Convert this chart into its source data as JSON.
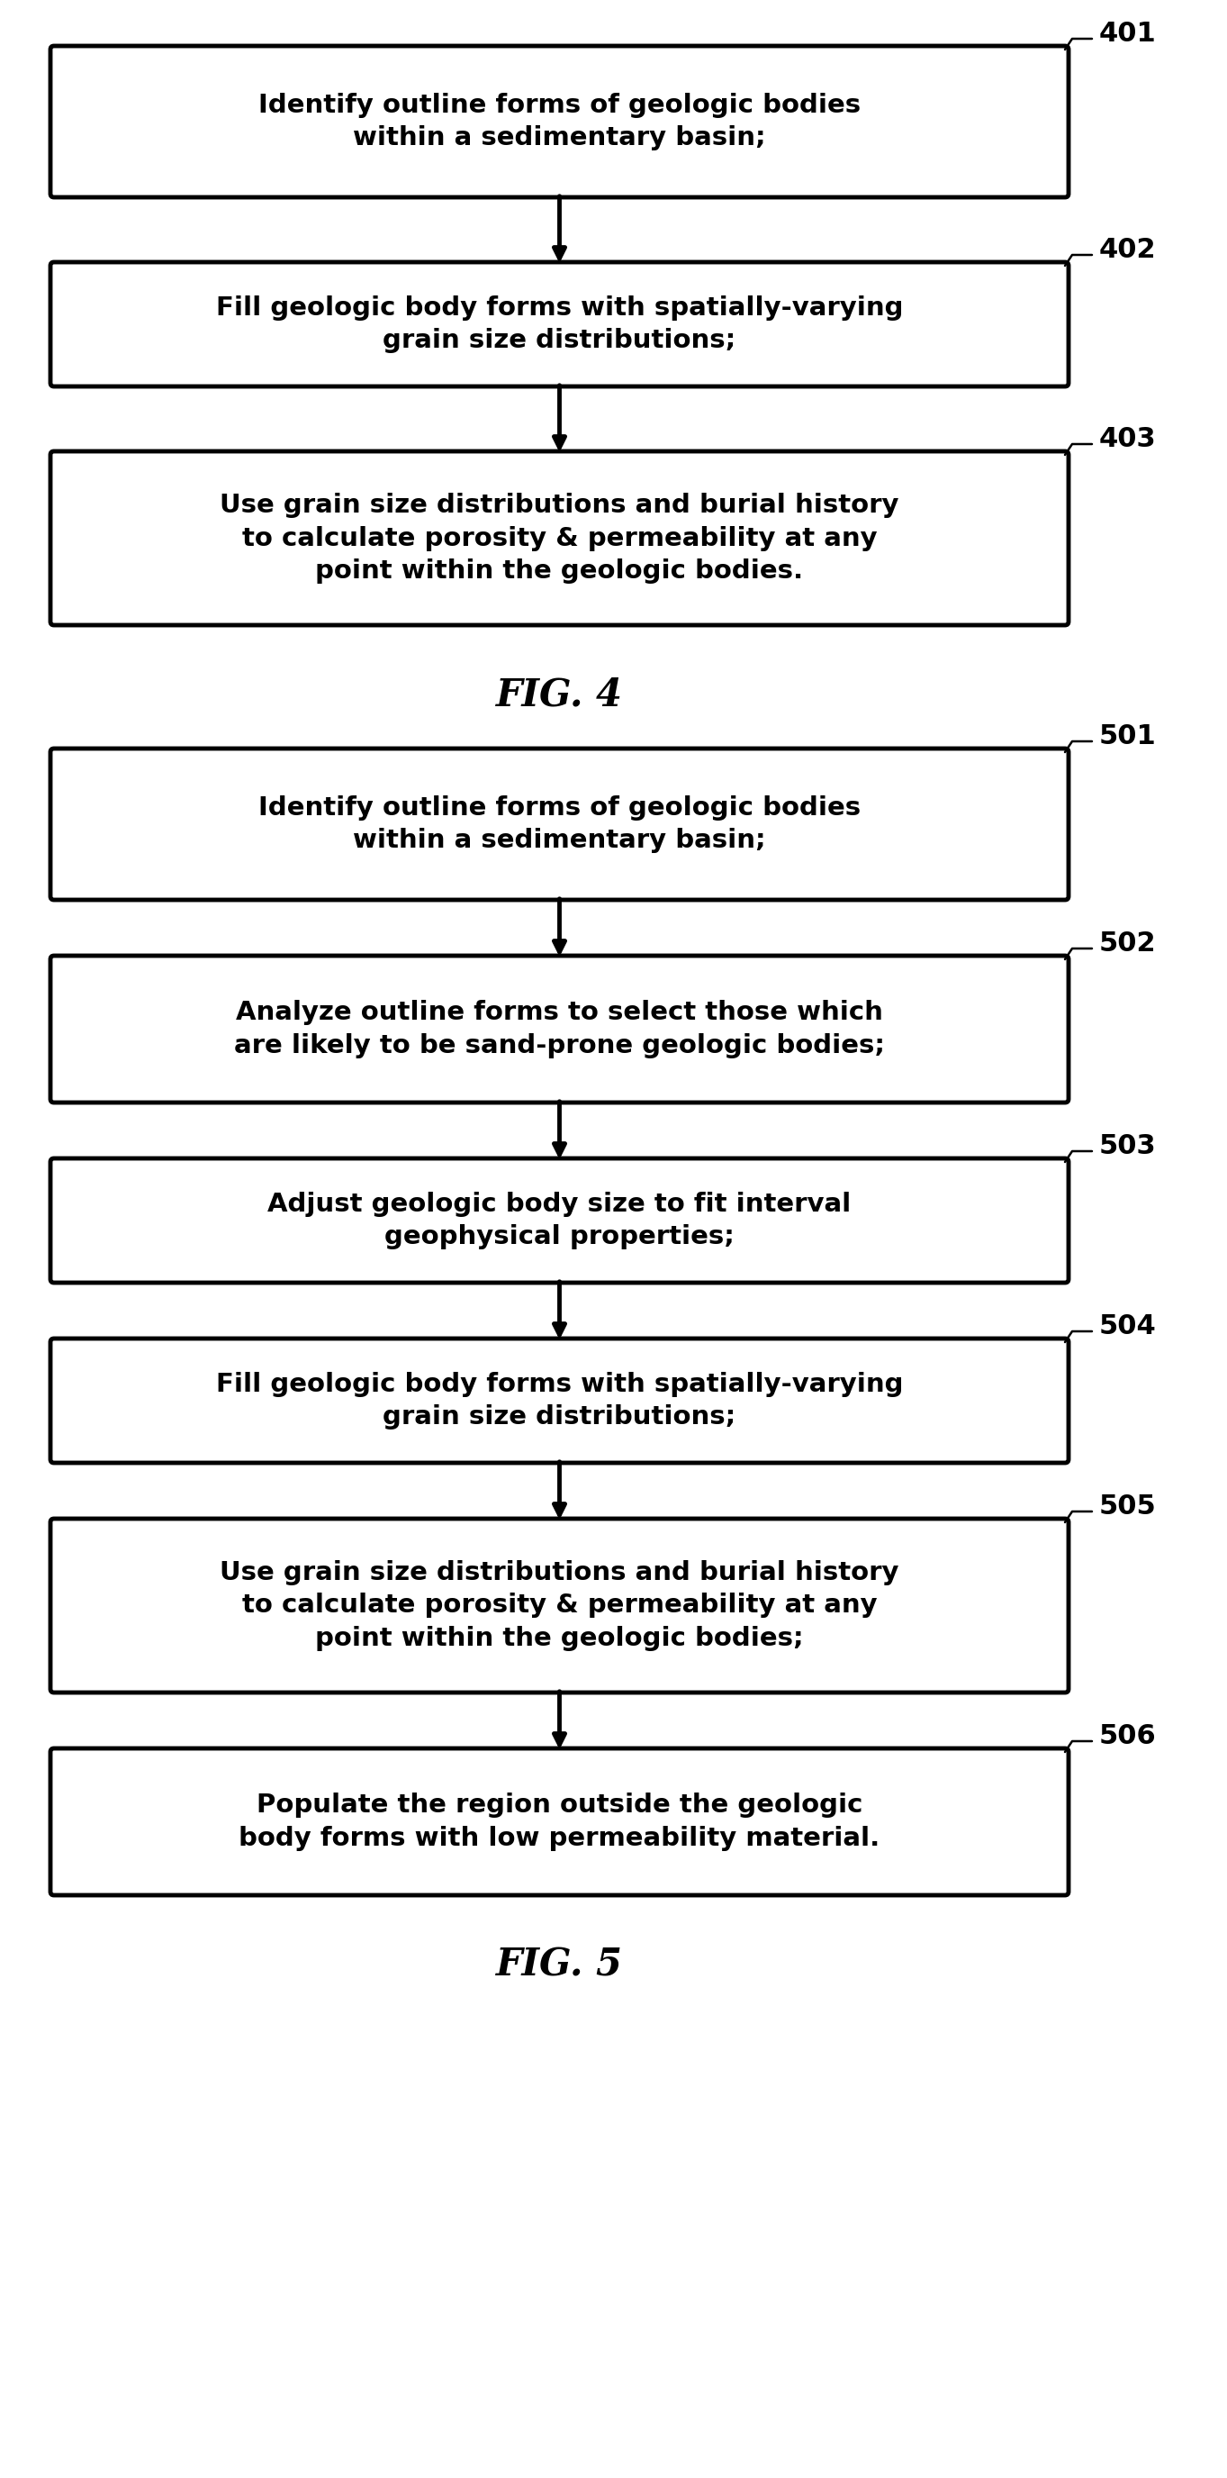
{
  "fig4": {
    "title": "FIG. 4",
    "boxes": [
      {
        "label": "Identify outline forms of geologic bodies\nwithin a sedimentary basin;",
        "ref": "401"
      },
      {
        "label": "Fill geologic body forms with spatially-varying\ngrain size distributions;",
        "ref": "402"
      },
      {
        "label": "Use grain size distributions and burial history\nto calculate porosity & permeability at any\npoint within the geologic bodies.",
        "ref": "403"
      }
    ]
  },
  "fig5": {
    "title": "FIG. 5",
    "boxes": [
      {
        "label": "Identify outline forms of geologic bodies\nwithin a sedimentary basin;",
        "ref": "501"
      },
      {
        "label": "Analyze outline forms to select those which\nare likely to be sand-prone geologic bodies;",
        "ref": "502"
      },
      {
        "label": "Adjust geologic body size to fit interval\ngeophysical properties;",
        "ref": "503"
      },
      {
        "label": "Fill geologic body forms with spatially-varying\ngrain size distributions;",
        "ref": "504"
      },
      {
        "label": "Use grain size distributions and burial history\nto calculate porosity & permeability at any\npoint within the geologic bodies;",
        "ref": "505"
      },
      {
        "label": "Populate the region outside the geologic\nbody forms with low permeability material.",
        "ref": "506"
      }
    ]
  },
  "background_color": "#ffffff",
  "box_edge_color": "#000000",
  "box_face_color": "#ffffff",
  "text_color": "#000000",
  "arrow_color": "#000000"
}
